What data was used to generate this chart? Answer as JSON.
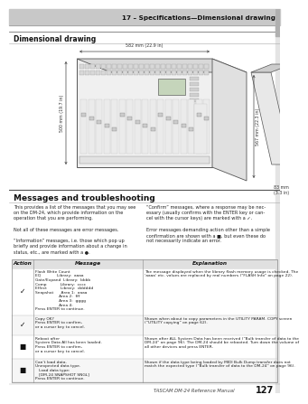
{
  "header_gray": "#c8c8c8",
  "header_text": "17 – Specifications—Dimensional drawing",
  "header_text_color": "#111111",
  "section1_title": "Dimensional drawing",
  "section2_title": "Messages and troubleshooting",
  "body_text_left": "This provides a list of the messages that you may see\non the DM-24, which provide information on the\noperation that you are performing.\n\nNot all of these messages are error messages.\n\n“Information” messages, i.e. those which pop up\nbriefly and provide information about a change in\nstatus, etc., are marked with a ●.",
  "body_text_right": "“Confirm” messages, where a response may be nec-\nessary (usually confirms with the ENTER key or can-\ncel with the cursor keys) are marked with a ✓.\n\nError messages demanding action other than a simple\nconfirmation are shown with a ■, but even these do\nnot necessarily indicate an error.",
  "table_headers": [
    "Action",
    "Message",
    "Explanation"
  ],
  "table_rows": [
    {
      "action": "✓",
      "message": "Flash Write Count\nEQ             Library:  aaaa\nGate/Expand  Library:  bbbb\nComp           Library:  cccc\nEffect           Library:  dddddd\nSnapshot      Area 1:  aaaa\n                   Area 2:  fff\n                   Area 3:  gggg\n                   Area 4:\nPress ENTER to continue.",
      "explanation": "The message displayed when the library flash memory usage is checked. The\n‘aaaa’ etc. values are replaced by real numbers (“FLASH Info” on page 22)."
    },
    {
      "action": "✓",
      "message": "Copy OK?\nPress ENTER to confirm,\nor a cursor key to cancel.",
      "explanation": "Shown when about to copy parameters in the UTILITY PARAM. COPY screen\n(“UTILITY copying” on page 62)."
    },
    {
      "action": "■",
      "message": "Reboot after\nSystem Data All has been loaded.\nPress ENTER to confirm,\nor a cursor key to cancel.",
      "explanation": "Shown after ALL System Data has been received (“Bulk transfer of data to the\nDM-24” on page 96). The DM-24 should be rebooted. Turn down the volume of\nall other devices and press ENTER."
    },
    {
      "action": "■",
      "message": "Can’t load data.\nUnexpected data type.\n   Load data type:\n   [DM-24 SNAPSHOT SNGL]\nPress ENTER to continue.",
      "explanation": "Shown if the data type being loaded by MIDI Bulk Dump transfer does not\nmatch the expected type (“Bulk transfer of data to the DM-24” on page 96)."
    }
  ],
  "footer_text": "TASCAM DM-24 Reference Manual",
  "footer_page": "127",
  "bg_color": "#ffffff",
  "line_color": "#888888",
  "table_header_bg": "#e0e0e0",
  "dim_width_label": "582 mm (22.9 in)",
  "dim_depth_label": "500 mm (19.7 in)",
  "dim_depth2_label": "567 mm (22.3 in)",
  "dim_height_label": "83 mm\n(3.3 in)"
}
